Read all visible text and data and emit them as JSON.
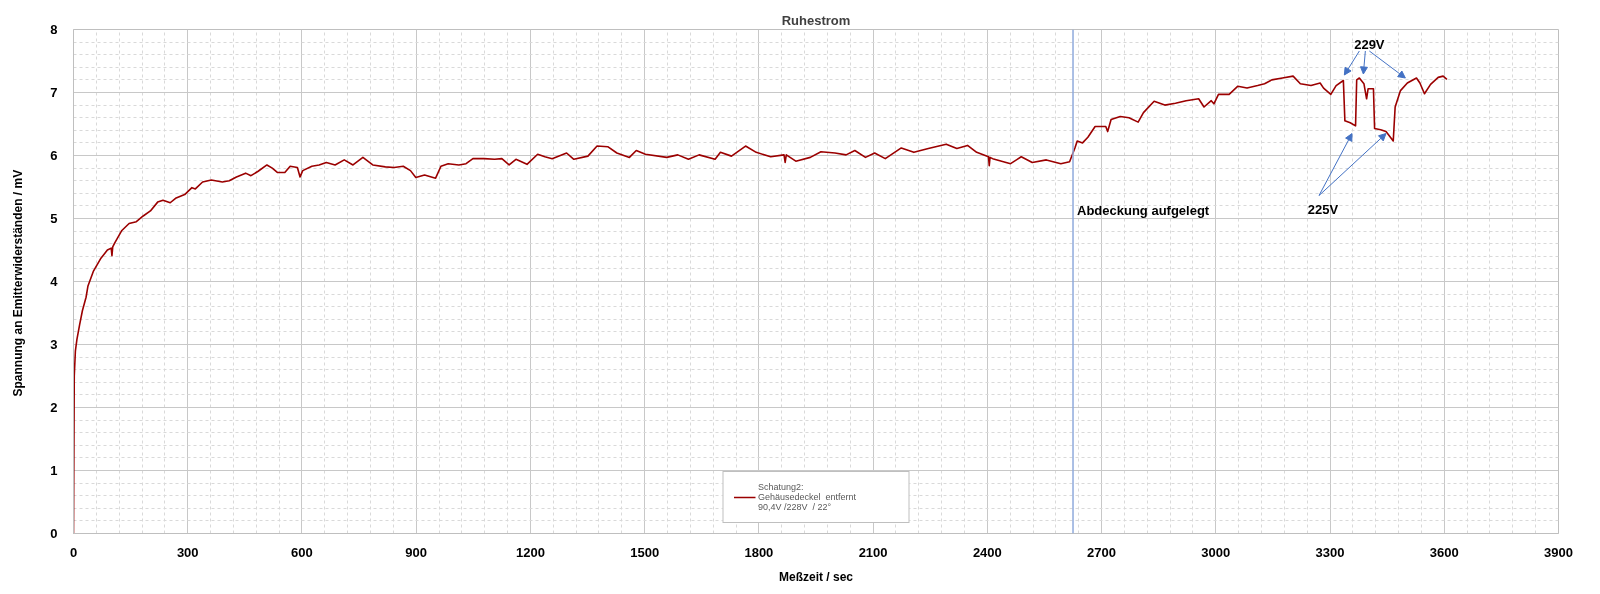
{
  "chart_data": {
    "type": "line",
    "title": "Ruhestrom",
    "xlabel": "Meßzeit / sec",
    "ylabel": "Spannung an Emitterwiderständen  / mV",
    "xlim": [
      0,
      3900
    ],
    "xticks": [
      0,
      300,
      600,
      900,
      1200,
      1500,
      1800,
      2100,
      2400,
      2700,
      3000,
      3300,
      3600,
      3900
    ],
    "ylim": [
      0,
      8
    ],
    "yticks": [
      0,
      1,
      2,
      3,
      4,
      5,
      6,
      7,
      8
    ],
    "grid": true,
    "legend": "bottom",
    "ref_lines": [
      {
        "axis": "x",
        "value": 2625,
        "label": "Abdeckung aufgelegt",
        "color": "#8faadc"
      }
    ],
    "annotations": [
      {
        "text": "229V",
        "x": 3377,
        "y": 7.23
      },
      {
        "text": "225V",
        "x": 3447,
        "y": 6.38
      }
    ],
    "series": [
      {
        "name": "Schatung2:\nGehäusedeckel  entfernt\n90,4V /228V  / 22°",
        "color": "#9b0000",
        "x": [
          0,
          2,
          5,
          9,
          16,
          23.5,
          33,
          38,
          52,
          71,
          89,
          99,
          101,
          103,
          108,
          127,
          146,
          165,
          183,
          202,
          221,
          235,
          254,
          268,
          292,
          311,
          320,
          339,
          362,
          391,
          409,
          428,
          452,
          466,
          485,
          508,
          522,
          536,
          555,
          569,
          588,
          595,
          602,
          626,
          645,
          664,
          687,
          711,
          734,
          760,
          786,
          819,
          842,
          866,
          885,
          899,
          922,
          951,
          965,
          984,
          1012,
          1031,
          1049,
          1078,
          1106,
          1125,
          1144,
          1162,
          1191,
          1219,
          1238,
          1257,
          1295,
          1314,
          1351,
          1375,
          1403,
          1427,
          1460,
          1478,
          1502,
          1558,
          1587,
          1615,
          1643,
          1685,
          1699,
          1728,
          1765,
          1793,
          1831,
          1866,
          1869,
          1872,
          1897,
          1935,
          1963,
          2000,
          2029,
          2052,
          2080,
          2104,
          2132,
          2174,
          2207,
          2245,
          2292,
          2320,
          2348,
          2372,
          2403,
          2405,
          2407,
          2414,
          2461,
          2489,
          2518,
          2555,
          2593,
          2616,
          2630,
          2636,
          2650,
          2664,
          2683,
          2711,
          2716,
          2725,
          2749,
          2772,
          2796,
          2810,
          2838,
          2866,
          2894,
          2922,
          2955,
          2969,
          2988,
          2995,
          3007,
          3035,
          3058,
          3082,
          3110,
          3128,
          3147,
          3175,
          3203,
          3222,
          3250,
          3274,
          3283,
          3302,
          3316,
          3335,
          3339,
          3353,
          3367,
          3370,
          3377,
          3389,
          3396,
          3400,
          3414,
          3417,
          3433,
          3447,
          3466,
          3471,
          3485,
          3503,
          3527,
          3536,
          3548,
          3564,
          3584,
          3597,
          3607
        ],
        "values": [
          0,
          2.5,
          2.9,
          3.08,
          3.31,
          3.54,
          3.75,
          3.93,
          4.16,
          4.36,
          4.5,
          4.53,
          4.41,
          4.55,
          4.61,
          4.81,
          4.92,
          4.95,
          5.04,
          5.12,
          5.26,
          5.29,
          5.25,
          5.32,
          5.38,
          5.49,
          5.47,
          5.58,
          5.61,
          5.58,
          5.6,
          5.66,
          5.72,
          5.68,
          5.75,
          5.85,
          5.8,
          5.73,
          5.73,
          5.83,
          5.81,
          5.66,
          5.76,
          5.83,
          5.85,
          5.89,
          5.85,
          5.93,
          5.85,
          5.97,
          5.85,
          5.82,
          5.81,
          5.83,
          5.76,
          5.65,
          5.69,
          5.64,
          5.83,
          5.87,
          5.85,
          5.87,
          5.95,
          5.95,
          5.94,
          5.95,
          5.85,
          5.94,
          5.86,
          6.02,
          5.98,
          5.95,
          6.04,
          5.94,
          5.99,
          6.15,
          6.14,
          6.04,
          5.97,
          6.08,
          6.02,
          5.97,
          6.01,
          5.94,
          6.01,
          5.94,
          6.05,
          5.99,
          6.15,
          6.05,
          5.98,
          6.01,
          5.89,
          6.01,
          5.91,
          5.97,
          6.06,
          6.04,
          6.01,
          6.08,
          5.97,
          6.04,
          5.95,
          6.12,
          6.05,
          6.11,
          6.18,
          6.11,
          6.16,
          6.05,
          5.98,
          5.84,
          5.97,
          5.95,
          5.87,
          5.98,
          5.89,
          5.93,
          5.87,
          5.9,
          6.12,
          6.23,
          6.2,
          6.29,
          6.46,
          6.46,
          6.38,
          6.57,
          6.62,
          6.6,
          6.53,
          6.68,
          6.86,
          6.8,
          6.83,
          6.87,
          6.9,
          6.77,
          6.87,
          6.82,
          6.97,
          6.97,
          7.1,
          7.07,
          7.11,
          7.14,
          7.2,
          7.23,
          7.26,
          7.14,
          7.11,
          7.15,
          7.07,
          6.97,
          7.11,
          7.19,
          6.55,
          6.52,
          6.47,
          7.2,
          7.23,
          7.14,
          6.9,
          7.06,
          7.06,
          6.43,
          6.41,
          6.38,
          6.23,
          6.77,
          7.03,
          7.15,
          7.23,
          7.15,
          6.98,
          7.13,
          7.24,
          7.26,
          7.21
        ]
      }
    ]
  }
}
